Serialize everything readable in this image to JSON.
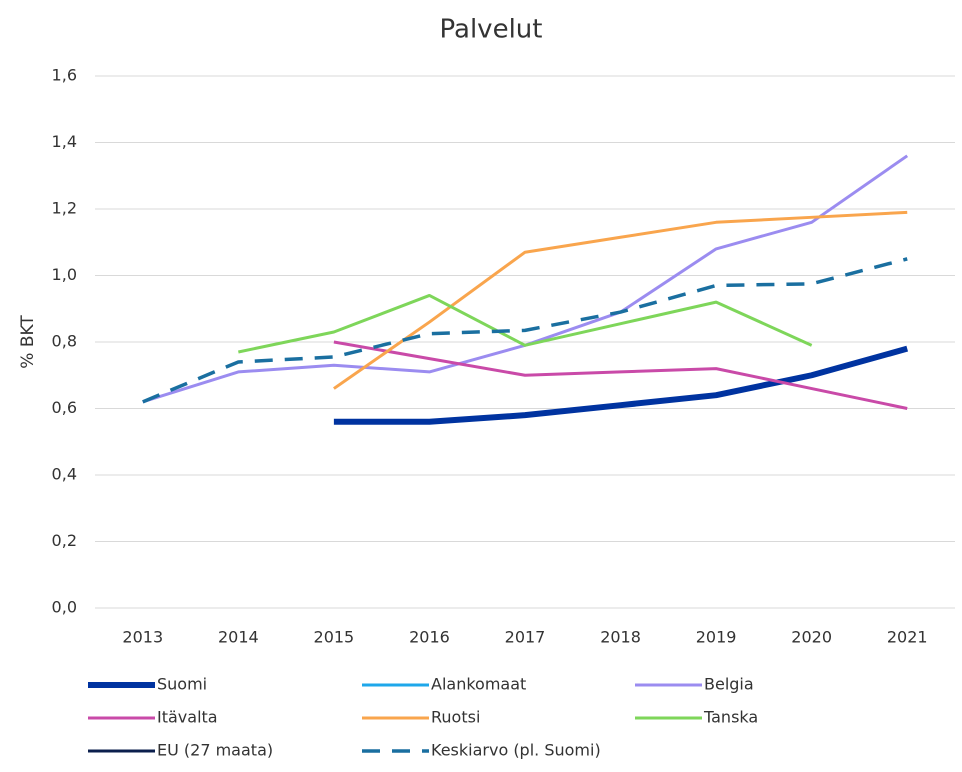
{
  "chart_data": {
    "type": "line",
    "title": "Palvelut",
    "y_label": "% BKT",
    "categories": [
      "2013",
      "2014",
      "2015",
      "2016",
      "2017",
      "2018",
      "2019",
      "2020",
      "2021"
    ],
    "series": [
      {
        "name": "Suomi",
        "color": "#0033a0",
        "width": 6,
        "dashed": false,
        "values": [
          null,
          null,
          0.56,
          0.56,
          0.58,
          0.61,
          0.64,
          0.7,
          0.78
        ]
      },
      {
        "name": "Alankomaat",
        "color": "#1ea7ea",
        "width": 3,
        "dashed": false,
        "values": [
          null,
          null,
          null,
          null,
          null,
          null,
          null,
          null,
          null
        ]
      },
      {
        "name": "Belgia",
        "color": "#9b8cf0",
        "width": 3,
        "dashed": false,
        "values": [
          0.62,
          0.71,
          0.73,
          0.71,
          0.79,
          0.89,
          1.08,
          1.16,
          1.36
        ]
      },
      {
        "name": "Itävalta",
        "color": "#c94aa8",
        "width": 3,
        "dashed": false,
        "values": [
          null,
          null,
          0.8,
          0.75,
          0.7,
          0.71,
          0.72,
          0.66,
          0.6
        ]
      },
      {
        "name": "Ruotsi",
        "color": "#f9a54d",
        "width": 3,
        "dashed": false,
        "values": [
          null,
          null,
          0.66,
          0.86,
          1.07,
          1.115,
          1.16,
          1.175,
          1.19
        ]
      },
      {
        "name": "Tanska",
        "color": "#7ed65a",
        "width": 3,
        "dashed": false,
        "values": [
          null,
          0.77,
          0.83,
          0.94,
          0.79,
          0.855,
          0.92,
          0.79,
          null
        ]
      },
      {
        "name": "EU (27 maata)",
        "color": "#0b1f4d",
        "width": 3,
        "dashed": false,
        "values": [
          null,
          null,
          null,
          null,
          null,
          null,
          null,
          null,
          null
        ]
      },
      {
        "name": "Keskiarvo (pl. Suomi)",
        "color": "#1a6fa0",
        "width": 3.5,
        "dashed": true,
        "values": [
          0.62,
          0.74,
          0.755,
          0.825,
          0.835,
          0.89,
          0.97,
          0.975,
          1.05
        ]
      }
    ],
    "ylim": [
      0,
      1.6
    ],
    "yticks": [
      {
        "value": 0,
        "label": "0,0"
      },
      {
        "value": 0.2,
        "label": "0,2"
      },
      {
        "value": 0.4,
        "label": "0,4"
      },
      {
        "value": 0.6,
        "label": "0,6"
      },
      {
        "value": 0.8,
        "label": "0,8"
      },
      {
        "value": 1.0,
        "label": "1,0"
      },
      {
        "value": 1.2,
        "label": "1,2"
      },
      {
        "value": 1.4,
        "label": "1,4"
      },
      {
        "value": 1.6,
        "label": "1,6"
      }
    ],
    "grid": true,
    "legend": "bottom"
  }
}
